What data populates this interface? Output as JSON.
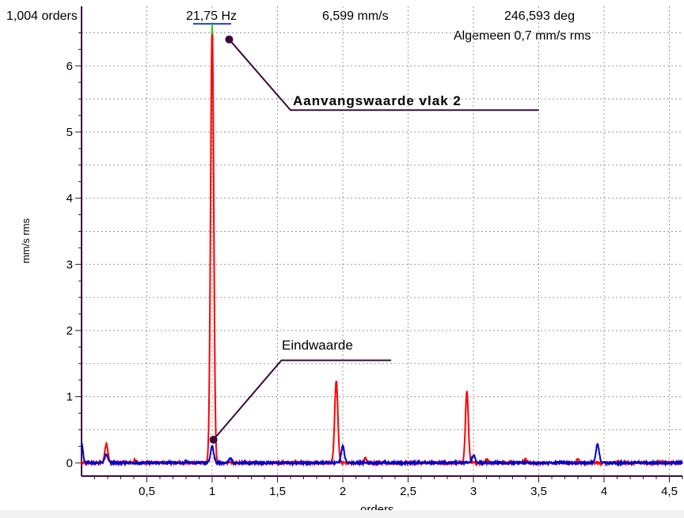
{
  "header": {
    "orders": "1,004 orders",
    "frequency": "21,75 Hz",
    "amplitude": "6,599 mm/s",
    "phase": "246,593 deg",
    "overall": "Algemeen 0,7 mm/s rms"
  },
  "annotations": {
    "initial": "Aanvangswaarde vlak 2",
    "final": "Eindwaarde"
  },
  "colors": {
    "red_series": "#ff0000",
    "blue_series": "#0000cc",
    "leader_lines": "#3a0a3a",
    "cursor": "#1f3fd6",
    "cursor_top": "#22cc22",
    "grid": "#9a9a9a",
    "axis": "#3a0a3a"
  },
  "chart_data": {
    "type": "line",
    "xlabel": "orders",
    "ylabel": "mm/s rms",
    "xlim": [
      0,
      4.6
    ],
    "ylim": [
      -0.2,
      6.9
    ],
    "x_ticks": [
      0.5,
      1,
      1.5,
      2,
      2.5,
      3,
      3.5,
      4,
      4.5
    ],
    "x_tick_labels": [
      "0,5",
      "1",
      "1,5",
      "2",
      "2,5",
      "3",
      "3,5",
      "4",
      "4,5"
    ],
    "y_ticks": [
      0,
      1,
      2,
      3,
      4,
      5,
      6
    ],
    "y_tick_labels": [
      "0",
      "1",
      "2",
      "3",
      "4",
      "5",
      "6"
    ],
    "grid": true,
    "series": [
      {
        "color": "#ff0000",
        "baseline": 0.0,
        "peaks": [
          {
            "x": 0.19,
            "y": 0.28,
            "w": 0.012
          },
          {
            "x": 0.41,
            "y": 0.05,
            "w": 0.01
          },
          {
            "x": 1.0,
            "y": 6.6,
            "w": 0.012
          },
          {
            "x": 1.95,
            "y": 1.25,
            "w": 0.012
          },
          {
            "x": 2.17,
            "y": 0.07,
            "w": 0.01
          },
          {
            "x": 2.95,
            "y": 1.08,
            "w": 0.011
          },
          {
            "x": 3.1,
            "y": 0.06,
            "w": 0.01
          },
          {
            "x": 3.4,
            "y": 0.05,
            "w": 0.01
          },
          {
            "x": 3.8,
            "y": 0.06,
            "w": 0.01
          }
        ]
      },
      {
        "color": "#0000cc",
        "baseline": 0.0,
        "peaks": [
          {
            "x": 0.0,
            "y": 0.32,
            "w": 0.01
          },
          {
            "x": 0.19,
            "y": 0.12,
            "w": 0.012
          },
          {
            "x": 0.8,
            "y": 0.03,
            "w": 0.01
          },
          {
            "x": 1.0,
            "y": 0.26,
            "w": 0.012
          },
          {
            "x": 1.14,
            "y": 0.07,
            "w": 0.01
          },
          {
            "x": 2.0,
            "y": 0.25,
            "w": 0.012
          },
          {
            "x": 3.0,
            "y": 0.12,
            "w": 0.012
          },
          {
            "x": 3.95,
            "y": 0.28,
            "w": 0.012
          }
        ]
      }
    ],
    "cursor": {
      "x": 1.0,
      "y": 6.6
    },
    "callouts": [
      {
        "name": "initial",
        "marker": [
          1.13,
          6.4
        ],
        "elbow": [
          1.6,
          5.33
        ],
        "end": [
          3.5,
          5.33
        ]
      },
      {
        "name": "final",
        "marker": [
          1.01,
          0.35
        ],
        "elbow": [
          1.53,
          1.55
        ],
        "end": [
          2.37,
          1.55
        ]
      }
    ]
  }
}
